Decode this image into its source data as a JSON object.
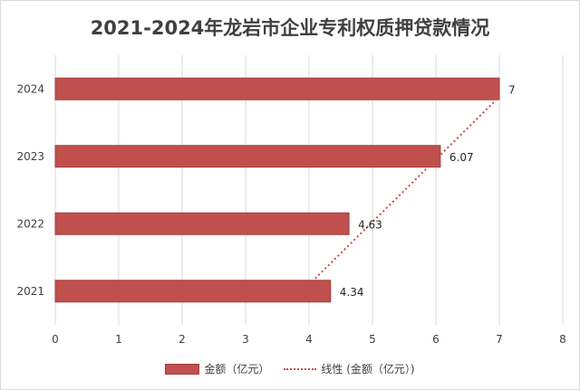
{
  "chart_data": {
    "type": "bar",
    "orientation": "horizontal",
    "title": "2021-2024年龙岩市企业专利权质押贷款情况",
    "categories": [
      "2021",
      "2022",
      "2023",
      "2024"
    ],
    "series": [
      {
        "name": "金额（亿元）",
        "values": [
          4.34,
          4.63,
          6.07,
          7
        ],
        "color": "#c0504d"
      }
    ],
    "trendline": {
      "name": "线性 (金额（亿元）)",
      "type": "linear",
      "style": "dotted",
      "color": "#c0504d"
    },
    "data_labels": [
      "4.34",
      "4.63",
      "6.07",
      "7"
    ],
    "xlim": [
      0,
      8
    ],
    "xticks": [
      0,
      1,
      2,
      3,
      4,
      5,
      6,
      7,
      8
    ],
    "xgrid": true,
    "legend_position": "bottom"
  }
}
